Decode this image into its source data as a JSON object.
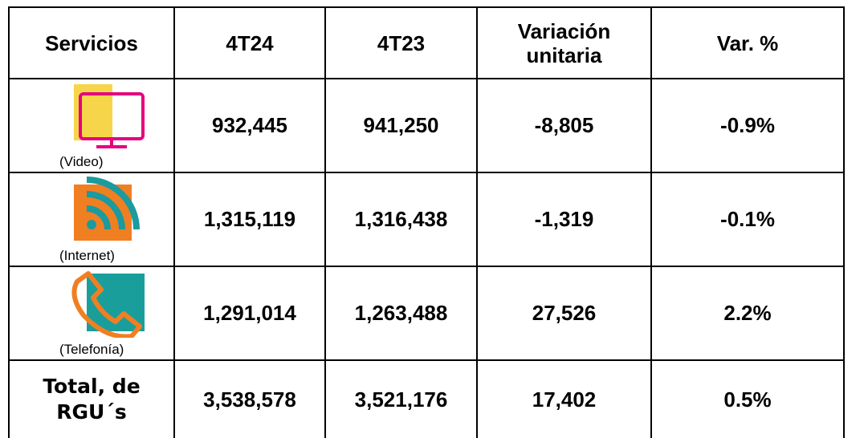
{
  "table": {
    "header": [
      "Servicios",
      "4T24",
      "4T23",
      "Variación unitaria",
      "Var. %"
    ],
    "rows": [
      [
        "(Video)",
        "932,445",
        "941,250",
        "-8,805",
        "-0.9%"
      ],
      [
        "(Internet)",
        "1,315,119",
        "1,316,438",
        "-1,319",
        "-0.1%"
      ],
      [
        "(Telefonía)",
        "1,291,014",
        "1,263,488",
        "27,526",
        "2.2%"
      ],
      [
        "Total, de RGU´s",
        "3,538,578",
        "3,521,176",
        "17,402",
        "0.5%"
      ]
    ]
  }
}
